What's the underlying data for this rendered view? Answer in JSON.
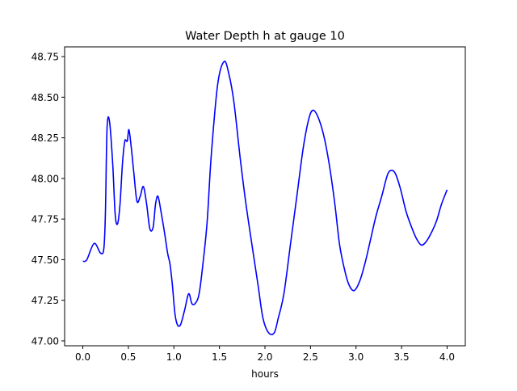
{
  "chart_data": {
    "type": "line",
    "title": "Water Depth h at gauge 10",
    "xlabel": "hours",
    "ylabel": "",
    "xlim": [
      -0.2,
      4.2
    ],
    "ylim": [
      46.97,
      48.81
    ],
    "xticks": [
      0.0,
      0.5,
      1.0,
      1.5,
      2.0,
      2.5,
      3.0,
      3.5,
      4.0
    ],
    "xtick_labels": [
      "0.0",
      "0.5",
      "1.0",
      "1.5",
      "2.0",
      "2.5",
      "3.0",
      "3.5",
      "4.0"
    ],
    "yticks": [
      47.0,
      47.25,
      47.5,
      47.75,
      48.0,
      48.25,
      48.5,
      48.75
    ],
    "ytick_labels": [
      "47.00",
      "47.25",
      "47.50",
      "47.75",
      "48.00",
      "48.25",
      "48.50",
      "48.75"
    ],
    "grid": false,
    "series": [
      {
        "name": "h",
        "color": "#0000ff",
        "x": [
          0,
          0.044,
          0.124,
          0.195,
          0.231,
          0.248,
          0.266,
          0.293,
          0.328,
          0.355,
          0.381,
          0.408,
          0.435,
          0.461,
          0.488,
          0.506,
          0.532,
          0.559,
          0.594,
          0.63,
          0.665,
          0.701,
          0.736,
          0.772,
          0.798,
          0.825,
          0.86,
          0.896,
          0.931,
          0.958,
          0.984,
          1.011,
          1.038,
          1.073,
          1.118,
          1.162,
          1.197,
          1.233,
          1.277,
          1.322,
          1.366,
          1.41,
          1.481,
          1.552,
          1.605,
          1.659,
          1.729,
          1.792,
          1.871,
          1.925,
          1.978,
          2.04,
          2.102,
          2.146,
          2.208,
          2.279,
          2.35,
          2.421,
          2.483,
          2.528,
          2.581,
          2.643,
          2.705,
          2.768,
          2.82,
          2.882,
          2.927,
          2.98,
          3.042,
          3.104,
          3.166,
          3.22,
          3.282,
          3.344,
          3.388,
          3.432,
          3.486,
          3.548,
          3.61,
          3.663,
          3.716,
          3.769,
          3.831,
          3.885,
          3.938,
          4.0
        ],
        "y": [
          47.49,
          47.5,
          47.6,
          47.54,
          47.57,
          47.79,
          48.31,
          48.35,
          48.09,
          47.78,
          47.72,
          47.84,
          48.09,
          48.23,
          48.23,
          48.3,
          48.19,
          48.04,
          47.86,
          47.89,
          47.95,
          47.84,
          47.69,
          47.7,
          47.84,
          47.89,
          47.79,
          47.67,
          47.54,
          47.47,
          47.34,
          47.17,
          47.1,
          47.1,
          47.19,
          47.29,
          47.23,
          47.23,
          47.29,
          47.49,
          47.74,
          48.14,
          48.58,
          48.72,
          48.64,
          48.47,
          48.12,
          47.84,
          47.54,
          47.34,
          47.14,
          47.05,
          47.05,
          47.14,
          47.29,
          47.59,
          47.89,
          48.19,
          48.37,
          48.42,
          48.38,
          48.27,
          48.09,
          47.84,
          47.59,
          47.42,
          47.34,
          47.31,
          47.37,
          47.49,
          47.64,
          47.77,
          47.89,
          48.02,
          48.05,
          48.03,
          47.94,
          47.8,
          47.7,
          47.63,
          47.59,
          47.61,
          47.67,
          47.74,
          47.84,
          47.93
        ]
      }
    ]
  }
}
